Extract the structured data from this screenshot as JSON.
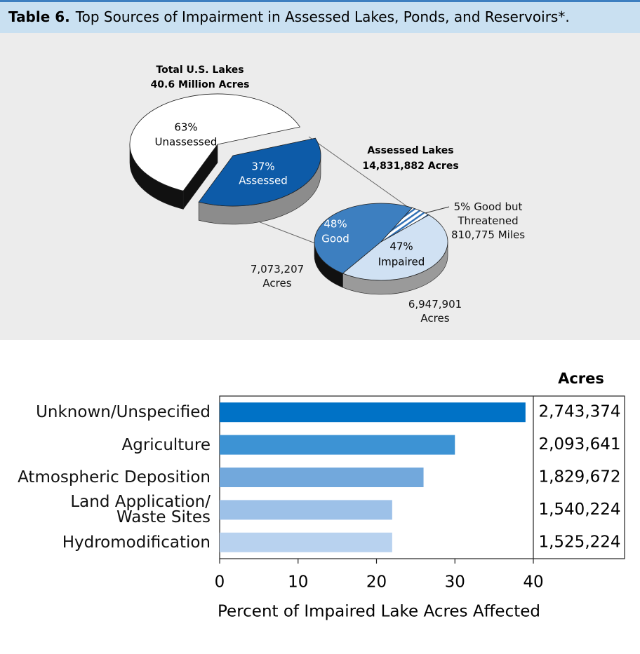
{
  "header": {
    "label": "Table 6.",
    "title": "Top Sources of Impairment in Assessed Lakes, Ponds, and Reservoirs*."
  },
  "chart_data": [
    {
      "type": "pie",
      "title": "Total U.S. Lakes",
      "subtitle": "40.6 Million Acres",
      "categories": [
        "Unassessed",
        "Assessed"
      ],
      "values": [
        63,
        37
      ],
      "value_labels": [
        "63%",
        "37%"
      ],
      "colors": [
        "#ffffff",
        "#0d5ba8"
      ],
      "side_colors": [
        "#111111",
        "#8c8c8c"
      ]
    },
    {
      "type": "pie",
      "title": "Assessed Lakes",
      "subtitle": "14,831,882 Acres",
      "categories": [
        "Good",
        "Good but Threatened",
        "Impaired"
      ],
      "values": [
        48,
        5,
        47
      ],
      "value_labels": [
        "48%",
        "5%",
        "47%"
      ],
      "annotations": [
        "7,073,207 Acres",
        "810,775 Miles",
        "6,947,901 Acres"
      ],
      "colors": [
        "#3d7fc0",
        "#2e6fb5",
        "#d0e1f3"
      ],
      "hatched": [
        false,
        true,
        false
      ],
      "side_colors": [
        "#111111",
        "#2a2a2a",
        "#9a9a9a"
      ]
    },
    {
      "type": "bar",
      "orientation": "horizontal",
      "categories": [
        "Unknown/Unspecified",
        "Agriculture",
        "Atmospheric Deposition",
        "Land Application/\nWaste Sites",
        "Hydromodification"
      ],
      "values": [
        39,
        30,
        26,
        22,
        22
      ],
      "colors": [
        "#0072c6",
        "#3d93d4",
        "#72a8dc",
        "#9dc1e8",
        "#b8d2ef"
      ],
      "table_header": "Acres",
      "acres": [
        "2,743,374",
        "2,093,641",
        "1,829,672",
        "1,540,224",
        "1,525,224"
      ],
      "xlabel": "Percent of Impaired Lake Acres Affected",
      "xlim": [
        0,
        40
      ],
      "xticks": [
        0,
        10,
        20,
        30,
        40
      ]
    }
  ]
}
